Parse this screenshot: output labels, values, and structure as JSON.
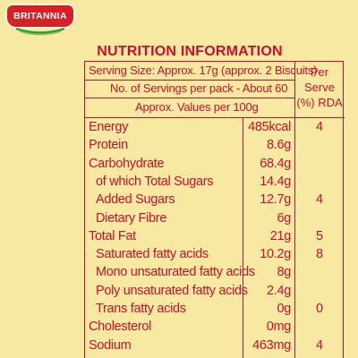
{
  "brand": {
    "logo_text": "BRITANNIA"
  },
  "colors": {
    "background": "#f8e9a2",
    "text_red": "#c8102e",
    "logo_red": "#d52027"
  },
  "title": "NUTRITION INFORMATION",
  "header": {
    "serving_size": "Serving Size: Approx. 17g (approx. 2 Biscuits)",
    "servings_per_pack": "No. of Servings per pack - About 60",
    "values_per": "Approx. Values per 100g",
    "rda_line1": "Per",
    "rda_line2": "Serve",
    "rda_line3": "(%) RDA"
  },
  "nutrients": [
    {
      "name": "Energy",
      "value": "485kcal",
      "rda": "4",
      "sub": false
    },
    {
      "name": "Protein",
      "value": "8.6g",
      "rda": "",
      "sub": false
    },
    {
      "name": "Carbohydrate",
      "value": "68.4g",
      "rda": "",
      "sub": false
    },
    {
      "name": "of which Total Sugars",
      "value": "14.4g",
      "rda": "",
      "sub": true
    },
    {
      "name": "Added Sugars",
      "value": "12.7g",
      "rda": "4",
      "sub": true
    },
    {
      "name": "Dietary Fibre",
      "value": "6g",
      "rda": "",
      "sub": true
    },
    {
      "name": "Total Fat",
      "value": "21g",
      "rda": "5",
      "sub": false
    },
    {
      "name": "Saturated fatty acids",
      "value": "10.2g",
      "rda": "8",
      "sub": true
    },
    {
      "name": "Mono unsaturated fatty acids",
      "value": "8g",
      "rda": "",
      "sub": true
    },
    {
      "name": "Poly unsaturated fatty acids",
      "value": "2.4g",
      "rda": "",
      "sub": true
    },
    {
      "name": "Trans fatty acids",
      "value": "0g",
      "rda": "0",
      "sub": true
    },
    {
      "name": "Cholesterol",
      "value": "0mg",
      "rda": "",
      "sub": false
    },
    {
      "name": "Sodium",
      "value": "463mg",
      "rda": "4",
      "sub": false
    }
  ]
}
